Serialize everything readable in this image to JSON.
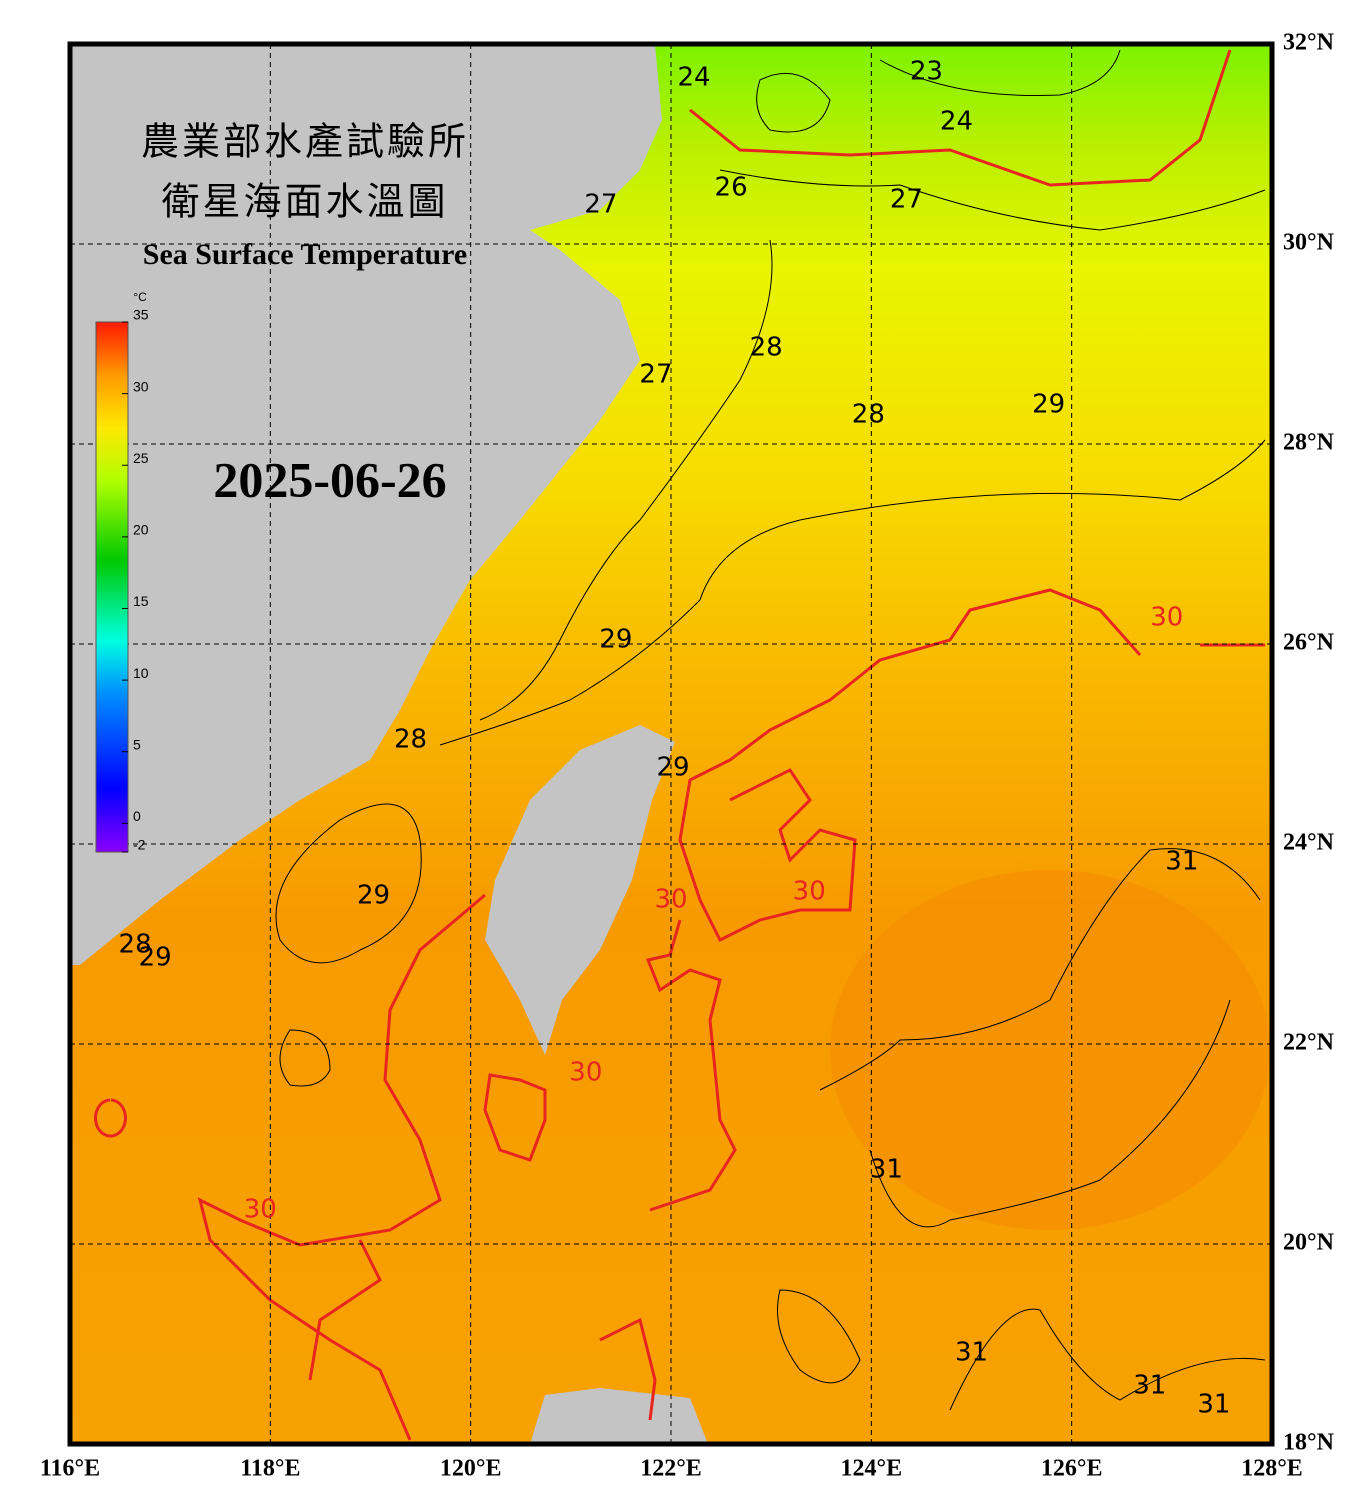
{
  "title": [
    "農業部水產試驗所",
    "衛星海面水溫圖"
  ],
  "subtitle": "Sea Surface Temperature",
  "date": "2025-06-26",
  "colorbar": {
    "unit": "°C",
    "range": [
      -2,
      35
    ],
    "ticks": [
      -2,
      0,
      5,
      10,
      15,
      20,
      25,
      30,
      35
    ]
  },
  "lon_ticks": [
    {
      "value": 116,
      "label": "116°E"
    },
    {
      "value": 118,
      "label": "118°E"
    },
    {
      "value": 120,
      "label": "120°E"
    },
    {
      "value": 122,
      "label": "122°E"
    },
    {
      "value": 124,
      "label": "124°E"
    },
    {
      "value": 126,
      "label": "126°E"
    },
    {
      "value": 128,
      "label": "128°E"
    }
  ],
  "lat_ticks": [
    {
      "value": 32,
      "label": "32°N"
    },
    {
      "value": 30,
      "label": "30°N"
    },
    {
      "value": 28,
      "label": "28°N"
    },
    {
      "value": 26,
      "label": "26°N"
    },
    {
      "value": 24,
      "label": "24°N"
    },
    {
      "value": 22,
      "label": "22°N"
    },
    {
      "value": 20,
      "label": "20°N"
    },
    {
      "value": 18,
      "label": "18°N"
    }
  ],
  "lon_range": [
    116,
    128
  ],
  "lat_range": [
    18,
    32
  ],
  "contour_labels": [
    {
      "value": 24,
      "lon": 122.23,
      "lat": 31.66,
      "color": "#000000"
    },
    {
      "value": 23,
      "lon": 124.55,
      "lat": 31.72,
      "color": "#000000"
    },
    {
      "value": 24,
      "lon": 124.85,
      "lat": 31.22,
      "color": "#000000"
    },
    {
      "value": 27,
      "lon": 121.3,
      "lat": 30.39,
      "color": "#000000"
    },
    {
      "value": 26,
      "lon": 122.6,
      "lat": 30.56,
      "color": "#000000"
    },
    {
      "value": 27,
      "lon": 124.35,
      "lat": 30.44,
      "color": "#000000"
    },
    {
      "value": 28,
      "lon": 122.95,
      "lat": 28.96,
      "color": "#000000"
    },
    {
      "value": 27,
      "lon": 121.85,
      "lat": 28.69,
      "color": "#000000"
    },
    {
      "value": 28,
      "lon": 123.97,
      "lat": 28.29,
      "color": "#000000"
    },
    {
      "value": 29,
      "lon": 125.77,
      "lat": 28.39,
      "color": "#000000"
    },
    {
      "value": 30,
      "lon": 126.95,
      "lat": 26.26,
      "color": "#e8251f"
    },
    {
      "value": 29,
      "lon": 121.45,
      "lat": 26.04,
      "color": "#000000"
    },
    {
      "value": 28,
      "lon": 119.4,
      "lat": 25.04,
      "color": "#000000"
    },
    {
      "value": 29,
      "lon": 122.02,
      "lat": 24.76,
      "color": "#000000"
    },
    {
      "value": 30,
      "lon": 122.0,
      "lat": 23.44,
      "color": "#e8251f"
    },
    {
      "value": 30,
      "lon": 123.38,
      "lat": 23.52,
      "color": "#e8251f"
    },
    {
      "value": 29,
      "lon": 119.03,
      "lat": 23.48,
      "color": "#000000"
    },
    {
      "value": 31,
      "lon": 127.1,
      "lat": 23.82,
      "color": "#000000"
    },
    {
      "value": 28,
      "lon": 116.65,
      "lat": 22.99,
      "color": "#000000"
    },
    {
      "value": 29,
      "lon": 116.85,
      "lat": 22.86,
      "color": "#000000"
    },
    {
      "value": 30,
      "lon": 121.15,
      "lat": 21.71,
      "color": "#e8251f"
    },
    {
      "value": 31,
      "lon": 124.15,
      "lat": 20.74,
      "color": "#000000"
    },
    {
      "value": 30,
      "lon": 117.9,
      "lat": 20.34,
      "color": "#e8251f"
    },
    {
      "value": 31,
      "lon": 125.0,
      "lat": 18.91,
      "color": "#000000"
    },
    {
      "value": 31,
      "lon": 126.78,
      "lat": 18.58,
      "color": "#000000"
    },
    {
      "value": 31,
      "lon": 127.42,
      "lat": 18.39,
      "color": "#000000"
    }
  ]
}
